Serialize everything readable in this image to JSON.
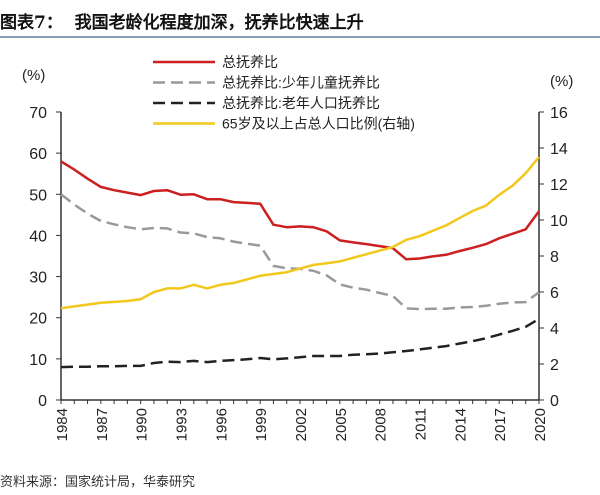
{
  "title": "图表7：  我国老龄化程度加深，抚养比快速上升",
  "source": "资料来源：国家统计局，华泰研究",
  "chart_data": {
    "type": "line",
    "x": [
      1984,
      1985,
      1986,
      1987,
      1988,
      1989,
      1990,
      1991,
      1992,
      1993,
      1994,
      1995,
      1996,
      1997,
      1998,
      1999,
      2000,
      2001,
      2002,
      2003,
      2004,
      2005,
      2006,
      2007,
      2008,
      2009,
      2010,
      2011,
      2012,
      2013,
      2014,
      2015,
      2016,
      2017,
      2018,
      2019,
      2020
    ],
    "xticks": [
      "1984",
      "1987",
      "1990",
      "1993",
      "1996",
      "1999",
      "2002",
      "2005",
      "2008",
      "2011",
      "2014",
      "2017",
      "2020"
    ],
    "ylabel_left": "(%)",
    "ylabel_right": "(%)",
    "ylim_left": [
      0,
      70
    ],
    "yticks_left": [
      "0",
      "10",
      "20",
      "30",
      "40",
      "50",
      "60",
      "70"
    ],
    "ylim_right": [
      0,
      16
    ],
    "yticks_right": [
      "0",
      "2",
      "4",
      "6",
      "8",
      "10",
      "12",
      "14",
      "16"
    ],
    "legend_placement": "top-center",
    "series": [
      {
        "name": "总抚养比",
        "axis": "left",
        "color": "#cc1f1f",
        "style": "solid",
        "values": [
          58.0,
          56.0,
          53.8,
          51.8,
          51.0,
          50.4,
          49.8,
          50.8,
          51.0,
          49.9,
          50.0,
          48.8,
          48.8,
          48.1,
          47.9,
          47.7,
          42.6,
          42.0,
          42.2,
          42.0,
          41.0,
          38.8,
          38.3,
          37.9,
          37.4,
          36.9,
          34.2,
          34.4,
          34.9,
          35.3,
          36.2,
          37.0,
          37.9,
          39.3,
          40.4,
          41.5,
          45.9
        ]
      },
      {
        "name": "总抚养比:少年儿童抚养比",
        "axis": "left",
        "color": "#999999",
        "style": "dashed",
        "values": [
          50.0,
          47.5,
          45.3,
          43.5,
          42.7,
          42.0,
          41.5,
          41.8,
          41.7,
          40.7,
          40.5,
          39.6,
          39.3,
          38.5,
          38.0,
          37.5,
          32.6,
          32.0,
          31.9,
          31.4,
          30.3,
          28.1,
          27.3,
          26.8,
          26.0,
          25.3,
          22.3,
          22.1,
          22.2,
          22.2,
          22.5,
          22.6,
          22.9,
          23.4,
          23.7,
          23.8,
          26.2
        ]
      },
      {
        "name": "总抚养比:老年人口抚养比",
        "axis": "left",
        "color": "#222222",
        "style": "dashed",
        "values": [
          8.0,
          8.1,
          8.1,
          8.2,
          8.2,
          8.3,
          8.3,
          9.0,
          9.3,
          9.2,
          9.5,
          9.2,
          9.5,
          9.7,
          9.9,
          10.2,
          9.9,
          10.1,
          10.4,
          10.7,
          10.7,
          10.7,
          11.0,
          11.1,
          11.3,
          11.6,
          11.9,
          12.3,
          12.7,
          13.1,
          13.7,
          14.3,
          15.0,
          15.9,
          16.8,
          17.8,
          19.7
        ]
      },
      {
        "name": "65岁及以上占总人口比例(右轴)",
        "axis": "right",
        "color": "#f2c81c",
        "style": "solid",
        "values": [
          5.1,
          5.2,
          5.3,
          5.4,
          5.45,
          5.5,
          5.6,
          6.0,
          6.2,
          6.2,
          6.4,
          6.2,
          6.4,
          6.5,
          6.7,
          6.9,
          7.0,
          7.1,
          7.3,
          7.5,
          7.6,
          7.7,
          7.9,
          8.1,
          8.3,
          8.5,
          8.9,
          9.1,
          9.4,
          9.7,
          10.1,
          10.5,
          10.8,
          11.4,
          11.9,
          12.6,
          13.5
        ]
      }
    ]
  }
}
